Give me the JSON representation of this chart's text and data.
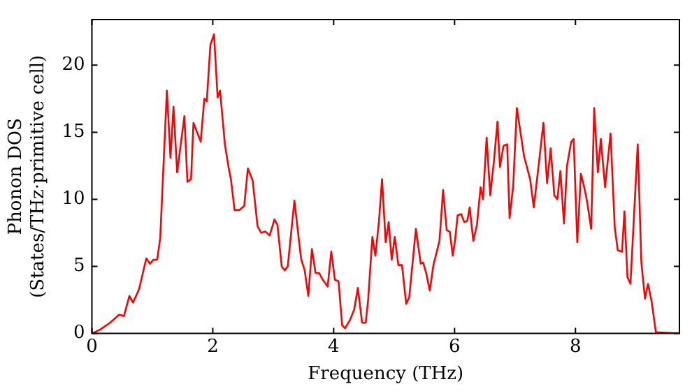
{
  "chart_data": {
    "type": "line",
    "xlabel": "Frequency (THz)",
    "ylabel": "Phonon DOS\n(States/THz·primitive cell)",
    "xlim": [
      0,
      9.72
    ],
    "ylim": [
      0,
      23.4
    ],
    "xticks": [
      0,
      2,
      4,
      6,
      8
    ],
    "yticks": [
      0,
      5,
      10,
      15,
      20
    ],
    "grid": false,
    "legend": false,
    "marker": "none",
    "line_style": "solid",
    "series": [
      {
        "color": "#ff0000",
        "x": [
          0,
          0.14,
          0.3,
          0.45,
          0.53,
          0.62,
          0.68,
          0.78,
          0.9,
          0.96,
          1.02,
          1.08,
          1.13,
          1.24,
          1.3,
          1.35,
          1.41,
          1.53,
          1.58,
          1.64,
          1.68,
          1.8,
          1.86,
          1.9,
          1.96,
          2.02,
          2.08,
          2.12,
          2.2,
          2.26,
          2.3,
          2.36,
          2.44,
          2.52,
          2.58,
          2.66,
          2.74,
          2.8,
          2.87,
          2.94,
          3.02,
          3.07,
          3.14,
          3.19,
          3.24,
          3.35,
          3.46,
          3.52,
          3.58,
          3.64,
          3.7,
          3.76,
          3.82,
          3.9,
          3.96,
          4.02,
          4.08,
          4.14,
          4.19,
          4.27,
          4.34,
          4.4,
          4.47,
          4.53,
          4.57,
          4.64,
          4.69,
          4.75,
          4.8,
          4.86,
          4.91,
          4.96,
          5.01,
          5.07,
          5.13,
          5.2,
          5.25,
          5.36,
          5.44,
          5.48,
          5.53,
          5.59,
          5.65,
          5.75,
          5.81,
          5.87,
          5.92,
          5.97,
          6.01,
          6.05,
          6.11,
          6.16,
          6.21,
          6.25,
          6.31,
          6.37,
          6.43,
          6.47,
          6.53,
          6.59,
          6.65,
          6.71,
          6.75,
          6.81,
          6.87,
          6.91,
          6.97,
          7.03,
          7.15,
          7.25,
          7.31,
          7.39,
          7.47,
          7.53,
          7.59,
          7.65,
          7.7,
          7.75,
          7.81,
          7.86,
          7.93,
          7.97,
          8.03,
          8.09,
          8.15,
          8.19,
          8.26,
          8.31,
          8.37,
          8.42,
          8.49,
          8.58,
          8.65,
          8.7,
          8.77,
          8.81,
          8.86,
          8.91,
          9.03,
          9.09,
          9.15,
          9.2,
          9.26,
          9.33,
          9.72
        ],
        "values": [
          0,
          0.3,
          0.8,
          1.4,
          1.3,
          2.8,
          2.3,
          3.3,
          5.6,
          5.2,
          5.5,
          5.5,
          7.1,
          18.1,
          13.1,
          16.9,
          12,
          16.2,
          11.3,
          11.5,
          15.7,
          14.3,
          17.5,
          17.3,
          21.5,
          22.3,
          17.6,
          18.1,
          14.1,
          12.4,
          11.5,
          9.2,
          9.2,
          9.5,
          12.3,
          11.4,
          8,
          7.5,
          7.6,
          7.3,
          8.5,
          8.1,
          5,
          4.7,
          5,
          9.9,
          5.6,
          4.7,
          2.8,
          6.3,
          4.5,
          4.5,
          4,
          3.5,
          6.1,
          4,
          3.9,
          0.6,
          0.4,
          1,
          1.8,
          3.4,
          0.8,
          0.8,
          2.5,
          7.2,
          5.8,
          8.4,
          11.5,
          6.8,
          8.3,
          5.5,
          7.2,
          5.1,
          5.1,
          2.2,
          2.7,
          7.8,
          5.2,
          5.3,
          4.5,
          3.2,
          5.1,
          6.9,
          10.7,
          7.7,
          7.6,
          5.8,
          7,
          8.8,
          8.9,
          8.3,
          8.4,
          9.4,
          6.9,
          8.1,
          10.9,
          10,
          14.6,
          10.3,
          12.8,
          15.8,
          12.4,
          14,
          14.1,
          8.6,
          11,
          16.8,
          13.2,
          11.5,
          9.4,
          12.5,
          15.7,
          11.2,
          13.8,
          10.3,
          10,
          12.1,
          8.2,
          12.5,
          14.3,
          14.5,
          6.8,
          11.9,
          10.8,
          9.9,
          7.8,
          16.8,
          12,
          14.5,
          10.9,
          14.9,
          7.9,
          6.2,
          6.1,
          9.1,
          4.2,
          3.7,
          14.1,
          5.3,
          2.6,
          3.7,
          2.4,
          0.1,
          0
        ]
      }
    ]
  }
}
